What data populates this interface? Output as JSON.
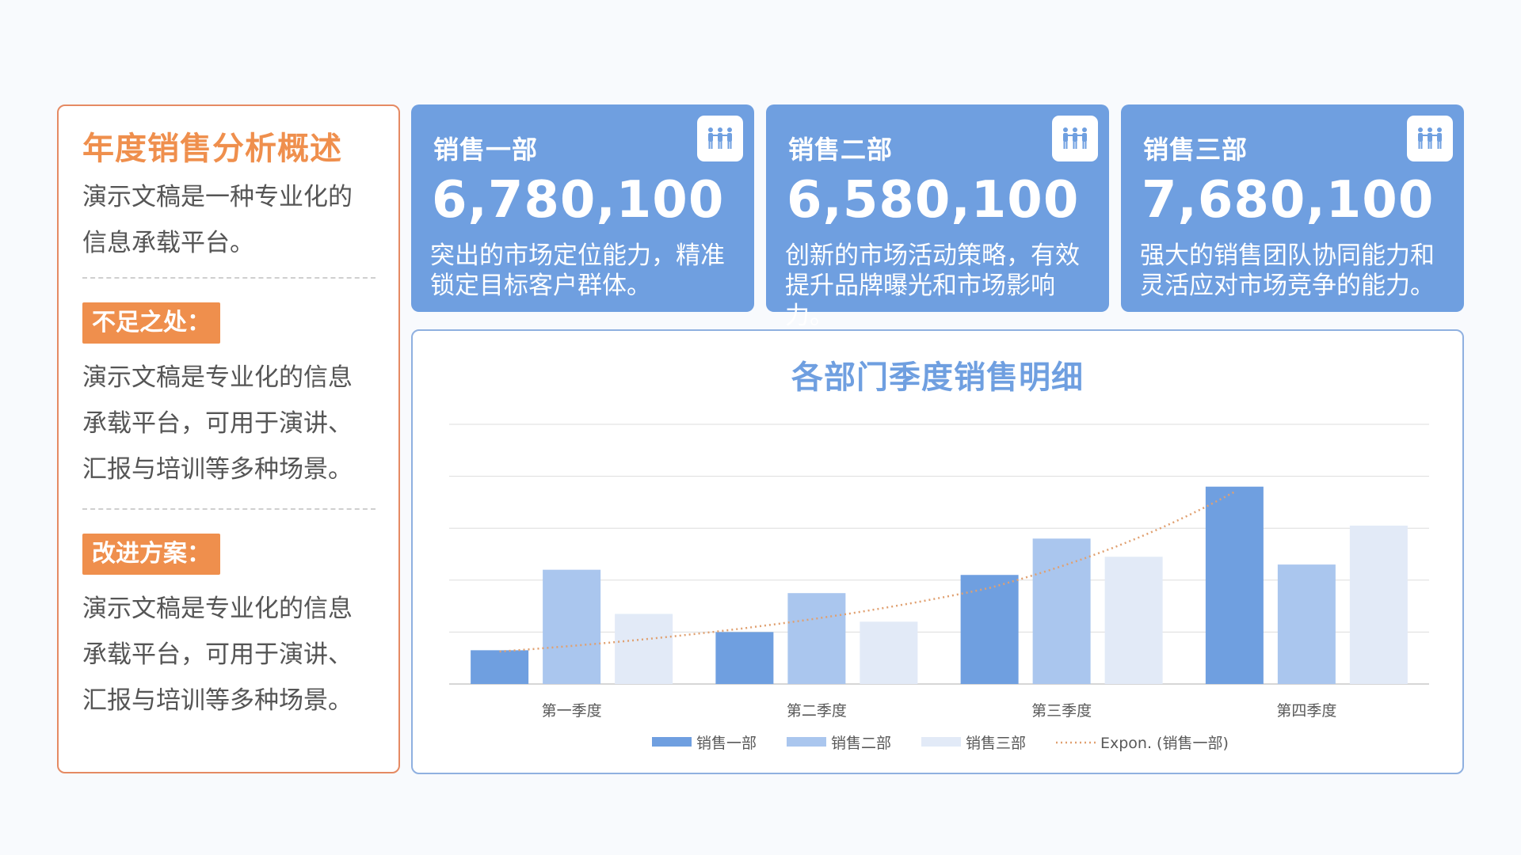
{
  "summary": {
    "title": "年度销售分析概述",
    "intro": "演示文稿是一种专业化的信息承载平台。",
    "weakness_label": "不足之处：",
    "weakness_text": "演示文稿是专业化的信息承载平台，可用于演讲、汇报与培训等多种场景。",
    "improve_label": "改进方案：",
    "improve_text": "演示文稿是专业化的信息承载平台，可用于演讲、汇报与培训等多种场景。"
  },
  "kpis": [
    {
      "name": "销售一部",
      "value": "6,780,100",
      "desc": "突出的市场定位能力，精准锁定目标客户群体。",
      "icon": "team-icon"
    },
    {
      "name": "销售二部",
      "value": "6,580,100",
      "desc": "创新的市场活动策略，有效提升品牌曝光和市场影响力。",
      "icon": "team-icon"
    },
    {
      "name": "销售三部",
      "value": "7,680,100",
      "desc": "强大的销售团队协同能力和灵活应对市场竞争的能力。",
      "icon": "team-icon"
    }
  ],
  "colors": {
    "series1": "#6f9fe0",
    "series2": "#aac6ee",
    "series3": "#e2eaf7",
    "trend": "#e0a070",
    "accent_orange": "#ef8f4d"
  },
  "chart_data": {
    "type": "bar",
    "title": "各部门季度销售明细",
    "categories": [
      "第一季度",
      "第二季度",
      "第三季度",
      "第四季度"
    ],
    "series": [
      {
        "name": "销售一部",
        "values": [
          1.3,
          2.0,
          4.2,
          7.6
        ]
      },
      {
        "name": "销售二部",
        "values": [
          4.4,
          3.5,
          5.6,
          4.6
        ]
      },
      {
        "name": "销售三部",
        "values": [
          2.7,
          2.4,
          4.9,
          6.1
        ]
      }
    ],
    "trendline": {
      "name": "Expon. (销售一部)",
      "type": "exponential",
      "of_series": "销售一部",
      "values": [
        1.25,
        2.15,
        3.7,
        7.4
      ]
    },
    "ylim": [
      0,
      10
    ],
    "grid": true,
    "legend": "bottom"
  }
}
